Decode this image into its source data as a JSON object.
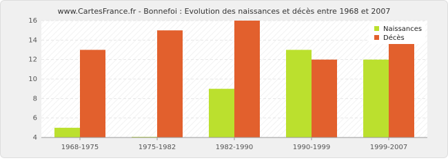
{
  "chart_data": {
    "type": "bar",
    "title": "www.CartesFrance.fr - Bonnefoi : Evolution des naissances et décès entre 1968 et 2007",
    "categories": [
      "1968-1975",
      "1975-1982",
      "1982-1990",
      "1990-1999",
      "1999-2007"
    ],
    "series": [
      {
        "name": "Naissances",
        "color": "#bbe02e",
        "values": [
          5,
          4,
          9,
          13,
          12
        ]
      },
      {
        "name": "Décès",
        "color": "#e2602d",
        "values": [
          13,
          15,
          16,
          12,
          14
        ]
      }
    ],
    "ylim": [
      4,
      16
    ],
    "yticks": [
      4,
      6,
      8,
      10,
      12,
      14,
      16
    ],
    "grid": true,
    "legend": "top-right"
  }
}
